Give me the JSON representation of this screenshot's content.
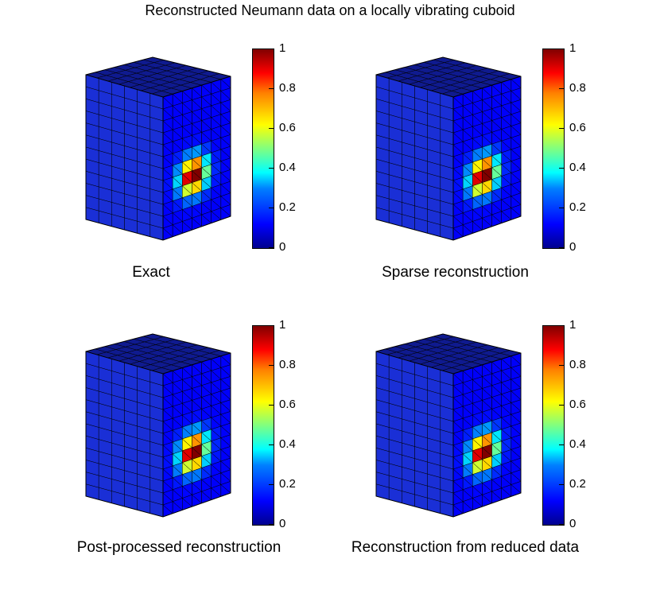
{
  "figure": {
    "title": "Reconstructed Neumann data on a locally vibrating cuboid"
  },
  "panels": [
    {
      "caption": "Exact",
      "colorbar_ticks": [
        "0",
        "0.2",
        "0.4",
        "0.6",
        "0.8",
        "1"
      ],
      "peak_offset": [
        0,
        0
      ]
    },
    {
      "caption": "Sparse reconstruction",
      "colorbar_ticks": [
        "0",
        "0.2",
        "0.4",
        "0.6",
        "0.8",
        "1"
      ],
      "peak_offset": [
        0,
        0
      ]
    },
    {
      "caption": "Post-processed reconstruction",
      "colorbar_ticks": [
        "0",
        "0.2",
        "0.4",
        "0.6",
        "0.8",
        "1"
      ],
      "peak_offset": [
        0,
        0
      ]
    },
    {
      "caption": "Reconstruction from reduced data",
      "colorbar_ticks": [
        "0",
        "0.2",
        "0.4",
        "0.6",
        "0.8",
        "1"
      ],
      "peak_offset": [
        0,
        0
      ]
    }
  ],
  "colors": {
    "low": "#1a2fd6",
    "peak": "#8b0000"
  }
}
